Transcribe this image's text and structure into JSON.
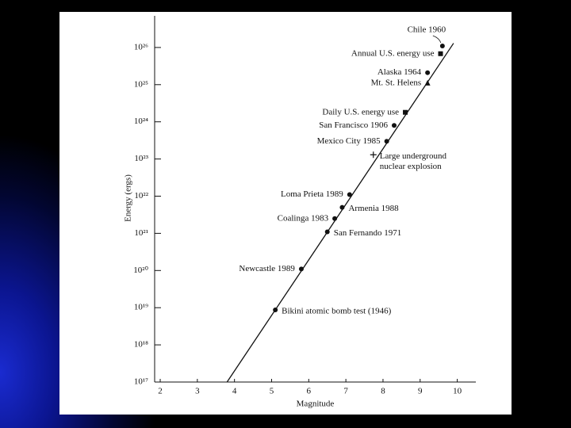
{
  "chart_data": {
    "type": "scatter",
    "x_label": "Magnitude",
    "y_label": "Energy (ergs)",
    "xlim": [
      1.85,
      10.5
    ],
    "xticks": [
      2,
      3,
      4,
      5,
      6,
      7,
      8,
      9,
      10
    ],
    "ylim": [
      1e+17,
      1e+27
    ],
    "y_scale": "log",
    "yticks": [
      {
        "value": 1e+17,
        "label": "10¹⁷"
      },
      {
        "value": 1e+18,
        "label": "10¹⁸"
      },
      {
        "value": 1e+19,
        "label": "10¹⁹"
      },
      {
        "value": 1e+20,
        "label": "10²⁰"
      },
      {
        "value": 1e+21,
        "label": "10²¹"
      },
      {
        "value": 1e+22,
        "label": "10²²"
      },
      {
        "value": 1e+23,
        "label": "10²³"
      },
      {
        "value": 1e+24,
        "label": "10²⁴"
      },
      {
        "value": 1e+25,
        "label": "10²⁵"
      },
      {
        "value": 1e+26,
        "label": "10²⁶"
      }
    ],
    "grid": false,
    "color": "#111111",
    "trend_line": {
      "x": [
        3.8,
        9.9
      ],
      "values": [
        1e+17,
        1.3e+26
      ]
    },
    "points": [
      {
        "label": [
          "Chile 1960"
        ],
        "x": 9.6,
        "y": 1.1e+26,
        "marker": "dot",
        "label_side": "above"
      },
      {
        "label": [
          "Annual U.S. energy use"
        ],
        "x": 9.55,
        "y": 6.8e+25,
        "marker": "square",
        "label_side": "left"
      },
      {
        "label": [
          "Alaska 1964"
        ],
        "x": 9.2,
        "y": 2.1e+25,
        "marker": "dot",
        "label_side": "left"
      },
      {
        "label": [
          "Mt. St. Helens"
        ],
        "x": 9.2,
        "y": 1.1e+25,
        "marker": "triangle",
        "label_side": "left"
      },
      {
        "label": [
          "Daily U.S. energy use"
        ],
        "x": 8.6,
        "y": 1.8e+24,
        "marker": "square",
        "label_side": "left"
      },
      {
        "label": [
          "San Francisco 1906"
        ],
        "x": 8.3,
        "y": 8e+23,
        "marker": "dot",
        "label_side": "left"
      },
      {
        "label": [
          "Mexico City 1985"
        ],
        "x": 8.1,
        "y": 3e+23,
        "marker": "dot",
        "label_side": "left"
      },
      {
        "label": [
          "Large underground",
          "nuclear explosion"
        ],
        "x": 7.74,
        "y": 1.3e+23,
        "marker": "plus",
        "label_side": "right"
      },
      {
        "label": [
          "Loma Prieta 1989"
        ],
        "x": 7.1,
        "y": 1.1e+22,
        "marker": "dot",
        "label_side": "left"
      },
      {
        "label": [
          "Armenia 1988"
        ],
        "x": 6.9,
        "y": 5e+21,
        "marker": "dot",
        "label_side": "right"
      },
      {
        "label": [
          "Coalinga 1983"
        ],
        "x": 6.7,
        "y": 2.5e+21,
        "marker": "dot",
        "label_side": "left"
      },
      {
        "label": [
          "San Fernando 1971"
        ],
        "x": 6.5,
        "y": 1.1e+21,
        "marker": "dot",
        "label_side": "right"
      },
      {
        "label": [
          "Newcastle 1989"
        ],
        "x": 5.8,
        "y": 1.1e+20,
        "marker": "dot",
        "label_side": "left"
      },
      {
        "label": [
          "Bikini atomic bomb test (1946)"
        ],
        "x": 5.1,
        "y": 8.7e+18,
        "marker": "dot",
        "label_side": "right"
      }
    ]
  }
}
